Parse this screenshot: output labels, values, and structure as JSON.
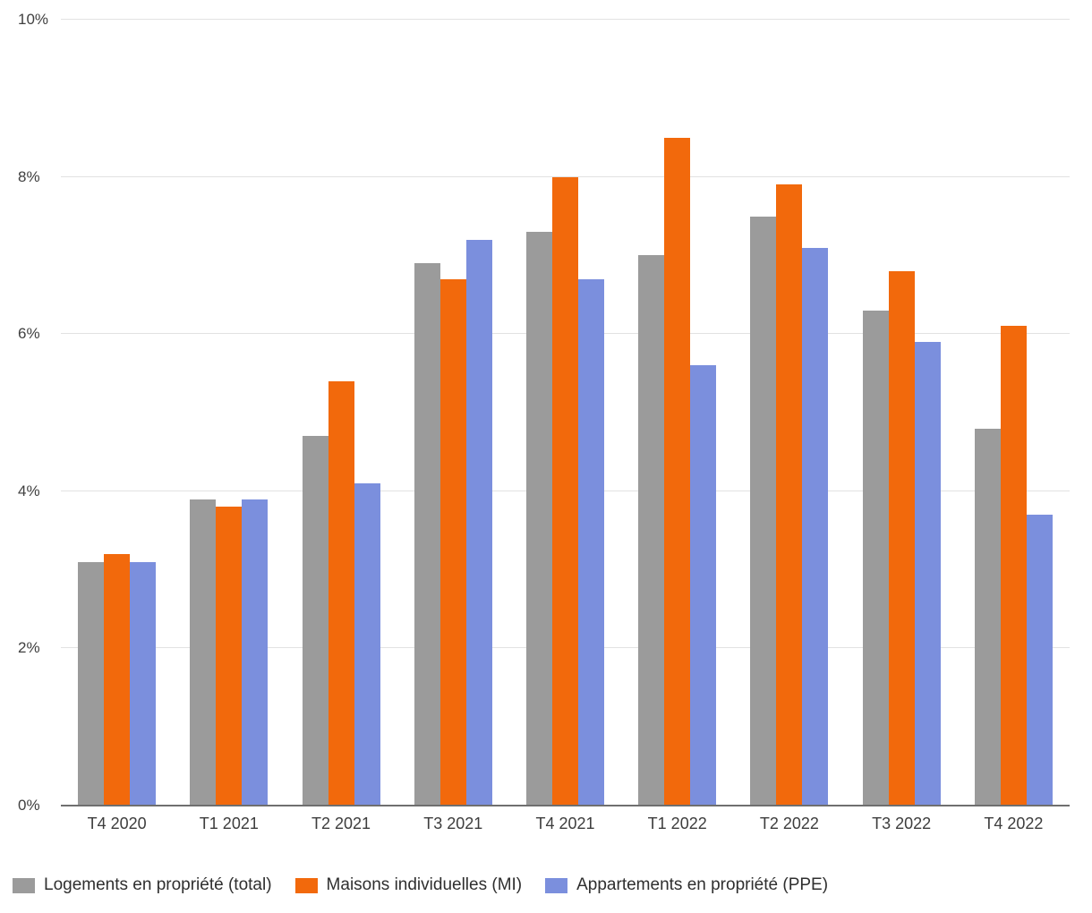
{
  "chart_data": {
    "type": "bar",
    "categories": [
      "T4 2020",
      "T1 2021",
      "T2 2021",
      "T3 2021",
      "T4 2021",
      "T1 2022",
      "T2 2022",
      "T3 2022",
      "T4 2022"
    ],
    "series": [
      {
        "name": "Logements en propriété (total)",
        "color": "#9b9b9b",
        "values": [
          3.1,
          3.9,
          4.7,
          6.9,
          7.3,
          7.0,
          7.5,
          6.3,
          4.8
        ]
      },
      {
        "name": "Maisons individuelles (MI)",
        "color": "#f2690c",
        "values": [
          3.2,
          3.8,
          5.4,
          6.7,
          8.0,
          8.5,
          7.9,
          6.8,
          6.1
        ]
      },
      {
        "name": "Appartements en propriété (PPE)",
        "color": "#7b8fdd",
        "values": [
          3.1,
          3.9,
          4.1,
          7.2,
          6.7,
          5.6,
          7.1,
          5.9,
          3.7
        ]
      }
    ],
    "y_ticks": [
      0,
      2,
      4,
      6,
      8,
      10
    ],
    "y_tick_labels": [
      "0%",
      "2%",
      "4%",
      "6%",
      "8%",
      "10%"
    ],
    "ylim": [
      0,
      10
    ],
    "grid": true,
    "legend_position": "bottom",
    "colors": {
      "gridline": "#e2e2e2",
      "baseline": "#6f6f6f",
      "axis_text": "#404040"
    }
  }
}
